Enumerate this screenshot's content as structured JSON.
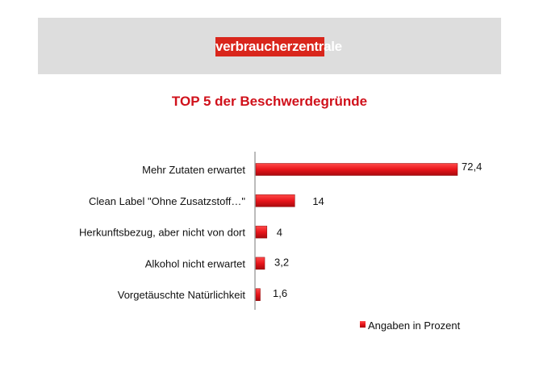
{
  "header": {
    "logo_text": "verbraucherzentrale"
  },
  "colors": {
    "bar": "#e8151b",
    "title": "#d0111b",
    "logo_bg": "#d9261c",
    "header_bg": "#dddddd"
  },
  "chart_data": {
    "type": "bar",
    "orientation": "horizontal",
    "title": "TOP 5 der Beschwerdegründe",
    "categories": [
      "Mehr Zutaten erwartet",
      "Clean Label \"Ohne Zusatzstoff…\"",
      "Herkunftsbezug, aber nicht von dort",
      "Alkohol nicht erwartet",
      "Vorgetäuschte Natürlichkeit"
    ],
    "series": [
      {
        "name": "Angaben in Prozent",
        "values": [
          72.4,
          14,
          4,
          3.2,
          1.6
        ]
      }
    ],
    "data_labels": [
      "72,4",
      "14",
      "4",
      "3,2",
      "1,6"
    ],
    "xlim": [
      0,
      72.4
    ],
    "grid": false,
    "legend": "bottom-right"
  }
}
